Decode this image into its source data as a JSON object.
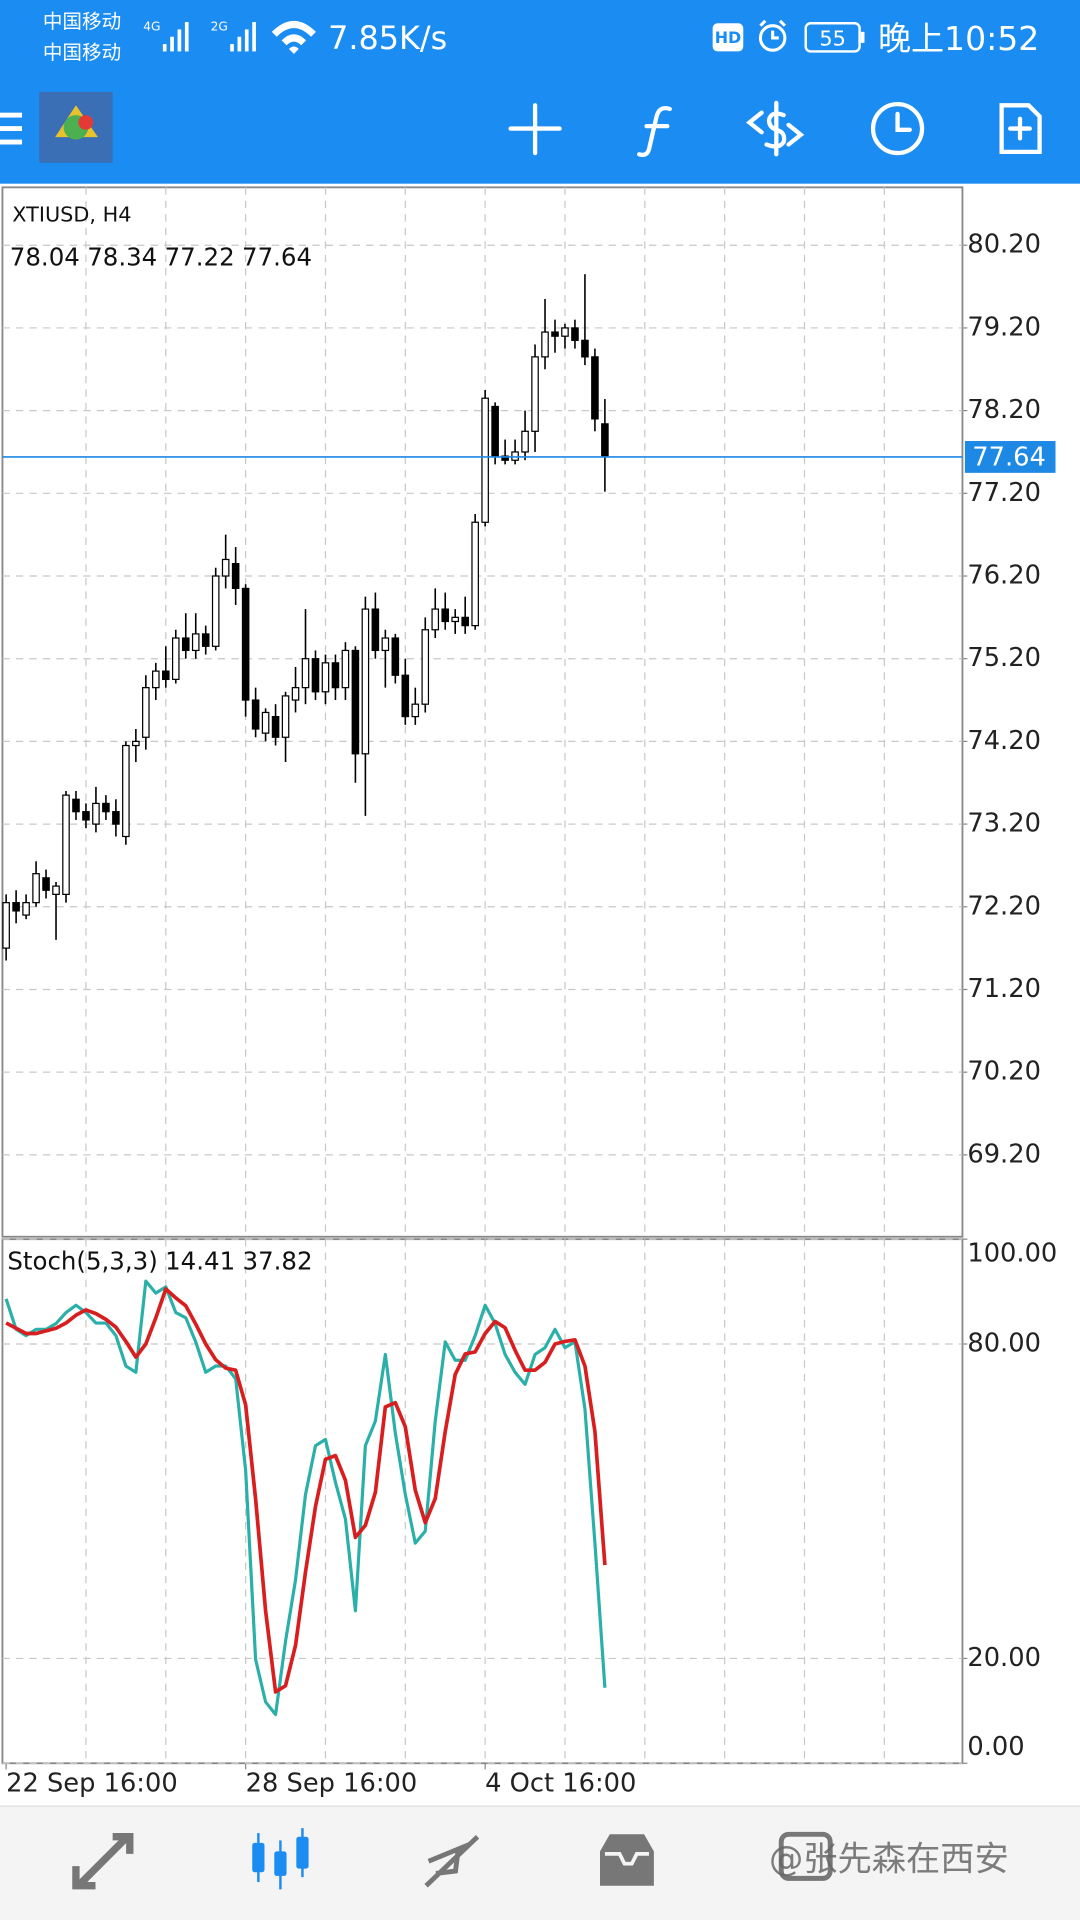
{
  "status_bar": {
    "carrier_1": "中国移动",
    "carrier_2": "中国移动",
    "network_1": "4G",
    "network_2": "2G",
    "speed": "7.85K/s",
    "hd": "HD",
    "battery": "55",
    "time": "晚上10:52"
  },
  "watermark": "@张先森在西安",
  "chart_data": [
    {
      "type": "candlestick",
      "title": "XTIUSD, H4",
      "categories": [
        "22 Sep 16:00",
        null,
        null,
        null,
        null,
        null,
        null,
        null,
        null,
        null,
        null,
        null,
        null,
        null,
        null,
        null,
        null,
        null,
        null,
        null,
        null,
        null,
        null,
        null,
        "28 Sep 16:00",
        null,
        null,
        null,
        null,
        null,
        null,
        null,
        null,
        null,
        null,
        null,
        null,
        null,
        null,
        null,
        null,
        null,
        null,
        null,
        null,
        null,
        null,
        null,
        "4 Oct 16:00",
        null,
        null,
        null,
        null,
        null,
        null,
        null,
        null,
        null,
        null,
        null,
        null
      ],
      "open": [
        71.7,
        72.25,
        72.1,
        72.25,
        72.55,
        72.35,
        72.35,
        73.5,
        73.35,
        73.2,
        73.45,
        73.35,
        73.05,
        74.15,
        74.25,
        74.85,
        75.05,
        74.95,
        75.45,
        75.3,
        75.5,
        75.35,
        76.2,
        76.35,
        76.05,
        74.7,
        74.3,
        74.5,
        74.25,
        74.7,
        74.85,
        75.2,
        74.8,
        75.15,
        74.85,
        75.3,
        74.05,
        75.8,
        75.3,
        75.45,
        75.0,
        74.5,
        74.65,
        75.55,
        75.8,
        75.65,
        75.7,
        75.6,
        76.85,
        78.25,
        77.65,
        77.6,
        77.7,
        77.95,
        78.85,
        79.15,
        79.1,
        79.2,
        79.05,
        78.85,
        78.04
      ],
      "high": [
        72.35,
        72.4,
        72.35,
        72.75,
        72.65,
        72.5,
        73.6,
        73.6,
        73.45,
        73.65,
        73.55,
        73.5,
        74.2,
        74.35,
        75.0,
        75.15,
        75.35,
        75.55,
        75.75,
        75.75,
        75.6,
        76.3,
        76.7,
        76.55,
        76.1,
        74.85,
        74.6,
        74.65,
        74.8,
        75.1,
        75.8,
        75.3,
        75.25,
        75.25,
        75.4,
        75.35,
        75.95,
        76.0,
        75.55,
        75.5,
        75.2,
        74.85,
        75.7,
        76.05,
        76.0,
        75.8,
        75.95,
        76.95,
        78.45,
        78.3,
        77.85,
        77.85,
        78.2,
        79.0,
        79.55,
        79.3,
        79.25,
        79.3,
        79.85,
        78.95,
        78.34
      ],
      "low": [
        71.55,
        72.0,
        72.05,
        72.2,
        72.3,
        71.8,
        72.25,
        73.25,
        73.15,
        73.1,
        73.25,
        73.05,
        72.95,
        73.95,
        74.1,
        74.7,
        74.85,
        74.9,
        75.2,
        75.2,
        75.25,
        75.3,
        76.05,
        75.85,
        74.5,
        74.25,
        74.2,
        74.15,
        73.95,
        74.55,
        74.65,
        74.7,
        74.65,
        74.7,
        74.7,
        73.7,
        73.3,
        75.2,
        74.85,
        74.9,
        74.4,
        74.4,
        74.55,
        75.45,
        75.55,
        75.5,
        75.5,
        75.55,
        76.8,
        77.55,
        77.55,
        77.55,
        77.6,
        77.7,
        78.7,
        78.9,
        78.95,
        78.95,
        78.75,
        77.95,
        77.22
      ],
      "close": [
        72.25,
        72.15,
        72.25,
        72.6,
        72.4,
        72.45,
        73.55,
        73.35,
        73.25,
        73.45,
        73.35,
        73.2,
        74.15,
        74.2,
        74.85,
        75.05,
        74.95,
        75.45,
        75.3,
        75.5,
        75.35,
        76.2,
        76.4,
        76.05,
        74.7,
        74.35,
        74.55,
        74.25,
        74.75,
        74.85,
        75.2,
        74.8,
        75.15,
        74.85,
        75.3,
        74.05,
        75.8,
        75.3,
        75.45,
        75.0,
        74.5,
        74.65,
        75.55,
        75.8,
        75.65,
        75.7,
        75.6,
        76.85,
        78.35,
        77.65,
        77.6,
        77.7,
        77.95,
        78.85,
        79.15,
        79.1,
        79.2,
        79.05,
        78.85,
        78.1,
        77.64
      ],
      "ylim": [
        68.21,
        80.9
      ],
      "yticks": [
        {
          "value": 69.2,
          "label": "69.20"
        },
        {
          "value": 70.2,
          "label": "70.20"
        },
        {
          "value": 71.2,
          "label": "71.20"
        },
        {
          "value": 72.2,
          "label": "72.20"
        },
        {
          "value": 73.2,
          "label": "73.20"
        },
        {
          "value": 74.2,
          "label": "74.20"
        },
        {
          "value": 75.2,
          "label": "75.20"
        },
        {
          "value": 76.2,
          "label": "76.20"
        },
        {
          "value": 77.2,
          "label": "77.20"
        },
        {
          "value": 78.2,
          "label": "78.20"
        },
        {
          "value": 79.2,
          "label": "79.20"
        },
        {
          "value": 80.2,
          "label": "80.20"
        }
      ],
      "grid": true,
      "up_color": "#ffffff",
      "down_color": "#000000",
      "price_line_color": "#1e88e5"
    },
    {
      "type": "line",
      "title": "Stoch(5,3,3)",
      "series": [
        {
          "color": "#2ab0a8",
          "values": [
            88.6,
            82.8,
            81.6,
            82.8,
            82.8,
            83.9,
            86,
            87.4,
            86,
            84,
            84,
            81.6,
            75.8,
            74.6,
            92,
            89.7,
            90.9,
            86,
            85,
            80.4,
            74.6,
            75.8,
            75.8,
            73.4,
            55.9,
            19.8,
            11.7,
            9.3,
            23.3,
            35,
            51.3,
            60.6,
            61.8,
            53.6,
            46.6,
            29.1,
            60.6,
            65.3,
            78,
            63,
            51.3,
            42,
            44.3,
            65.3,
            80.4,
            76.9,
            76.9,
            81.6,
            87.4,
            83.9,
            78,
            74.6,
            72.3,
            78,
            79.3,
            82.8,
            79.3,
            80.4,
            67.6,
            42,
            14.41
          ]
        },
        {
          "color": "#d81e1e",
          "values": [
            84,
            83,
            82,
            82,
            82.5,
            83,
            84,
            85.5,
            86.5,
            85.8,
            84.7,
            83.2,
            80.5,
            77.5,
            80,
            85,
            90.5,
            88.8,
            87.3,
            83.8,
            80,
            77,
            75.4,
            75,
            68.4,
            50.4,
            29.1,
            13.6,
            14.8,
            22.5,
            36.5,
            49,
            58,
            58.7,
            54,
            43.1,
            45.4,
            51.7,
            68,
            68.8,
            64.2,
            52.1,
            45.9,
            50.5,
            63.3,
            74.2,
            78.1,
            78.5,
            82,
            84.3,
            83.1,
            78.8,
            75,
            75,
            76.5,
            80,
            80.5,
            80.8,
            75.8,
            63.3,
            37.82
          ]
        }
      ],
      "ylim": [
        0,
        100
      ],
      "yticks": [
        {
          "value": 100,
          "label": "100.00"
        },
        {
          "value": 80,
          "label": "80.00"
        },
        {
          "value": 20,
          "label": "20.00"
        },
        {
          "value": 0,
          "label": "0.00"
        }
      ],
      "grid": true
    }
  ]
}
